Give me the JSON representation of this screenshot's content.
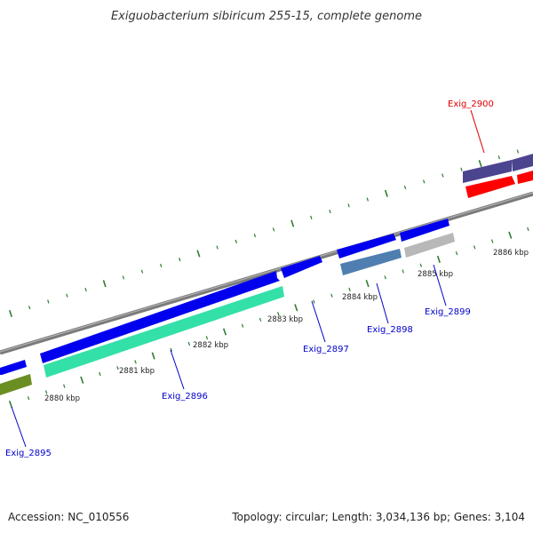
{
  "title": "Exiguobacterium sibiricum 255-15, complete genome",
  "accession": "Accession: NC_010556",
  "topology": "Topology: circular; Length: 3,034,136 bp; Genes: 3,104",
  "colors": {
    "backbone": "#808080",
    "ticks": "#2e7d32",
    "blue_gene": "#0000ee",
    "teal_gene": "#33e0a8",
    "olive_gene": "#6b8e23",
    "steel_gene": "#4f7fb0",
    "silver_gene": "#b8b8b8",
    "purple_gene": "#4b4590",
    "red_gene": "#ff0000",
    "label_blue": "#0000cc",
    "label_red": "#dd0000"
  },
  "kbp_labels": [
    "2880 kbp",
    "2881 kbp",
    "2882 kbp",
    "2883 kbp",
    "2884 kbp",
    "2885 kbp",
    "2886 kbp"
  ],
  "gene_labels": {
    "g2895": "Exig_2895",
    "g2896": "Exig_2896",
    "g2897": "Exig_2897",
    "g2898": "Exig_2898",
    "g2899": "Exig_2899",
    "g2900": "Exig_2900"
  }
}
